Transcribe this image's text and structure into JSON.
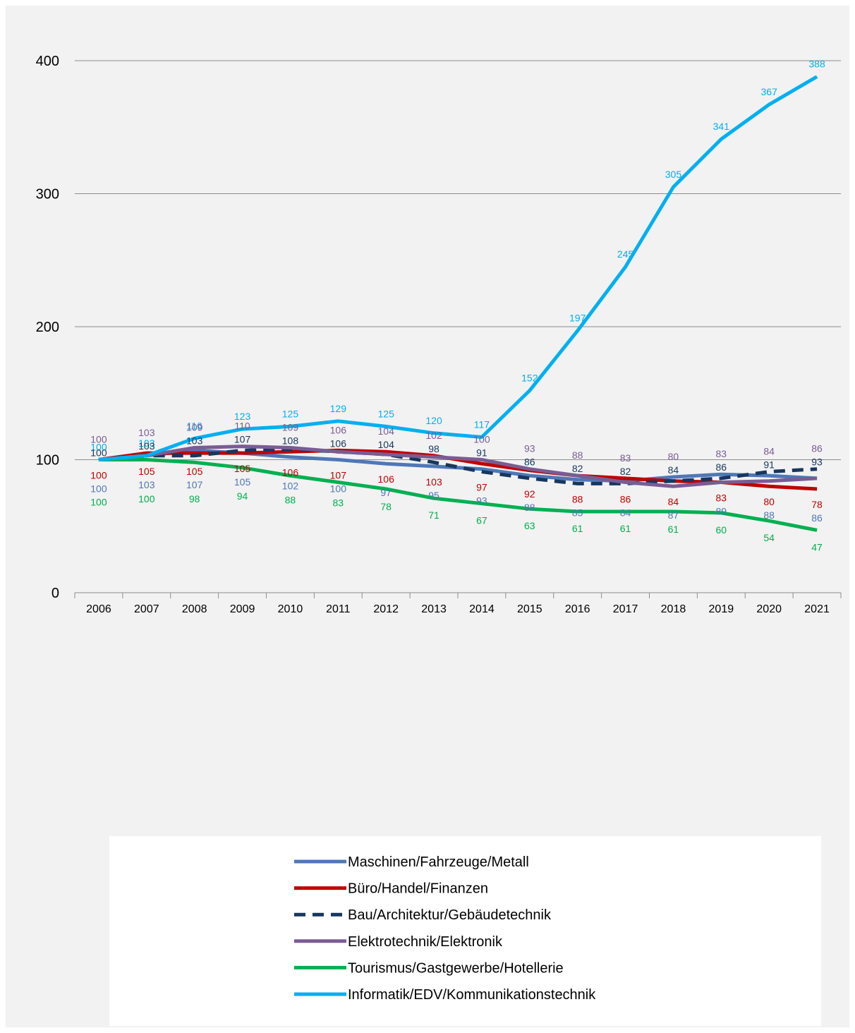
{
  "chart_data": {
    "type": "line",
    "title": "",
    "xlabel": "",
    "ylabel": "",
    "ylim": [
      0,
      400
    ],
    "yticks": [
      0,
      100,
      200,
      300,
      400
    ],
    "grid": true,
    "legend_position": "bottom",
    "categories": [
      "2006",
      "2007",
      "2008",
      "2009",
      "2010",
      "2011",
      "2012",
      "2013",
      "2014",
      "2015",
      "2016",
      "2017",
      "2018",
      "2019",
      "2020",
      "2021"
    ],
    "series": [
      {
        "name": "Maschinen/Fahrzeuge/Metall",
        "color": "#4f77b8",
        "dashed": false,
        "values": [
          100,
          103,
          107,
          105,
          102,
          100,
          97,
          95,
          93,
          88,
          85,
          84,
          87,
          89,
          88,
          86
        ]
      },
      {
        "name": "Büro/Handel/Finanzen",
        "color": "#c00000",
        "dashed": false,
        "values": [
          100,
          105,
          105,
          105,
          106,
          107,
          106,
          103,
          97,
          92,
          88,
          86,
          84,
          83,
          80,
          78
        ]
      },
      {
        "name": "Bau/Architektur/Gebäudetechnik",
        "color": "#17375e",
        "dashed": true,
        "values": [
          100,
          103,
          103,
          107,
          108,
          106,
          104,
          98,
          91,
          86,
          82,
          82,
          84,
          86,
          91,
          93
        ]
      },
      {
        "name": "Elektrotechnik/Elektronik",
        "color": "#7a5c94",
        "dashed": false,
        "values": [
          100,
          103,
          109,
          110,
          109,
          106,
          104,
          102,
          100,
          93,
          88,
          83,
          80,
          83,
          84,
          86
        ]
      },
      {
        "name": "Tourismus/Gastgewerbe/Hotellerie",
        "color": "#00b050",
        "dashed": false,
        "values": [
          100,
          100,
          98,
          94,
          88,
          83,
          78,
          71,
          67,
          63,
          61,
          61,
          61,
          60,
          54,
          47
        ]
      },
      {
        "name": "Informatik/EDV/Kommunikationstechnik",
        "color": "#00b0f0",
        "dashed": false,
        "values": [
          100,
          103,
          116,
          123,
          125,
          129,
          125,
          120,
          117,
          152,
          197,
          245,
          305,
          341,
          367,
          388
        ]
      }
    ]
  }
}
